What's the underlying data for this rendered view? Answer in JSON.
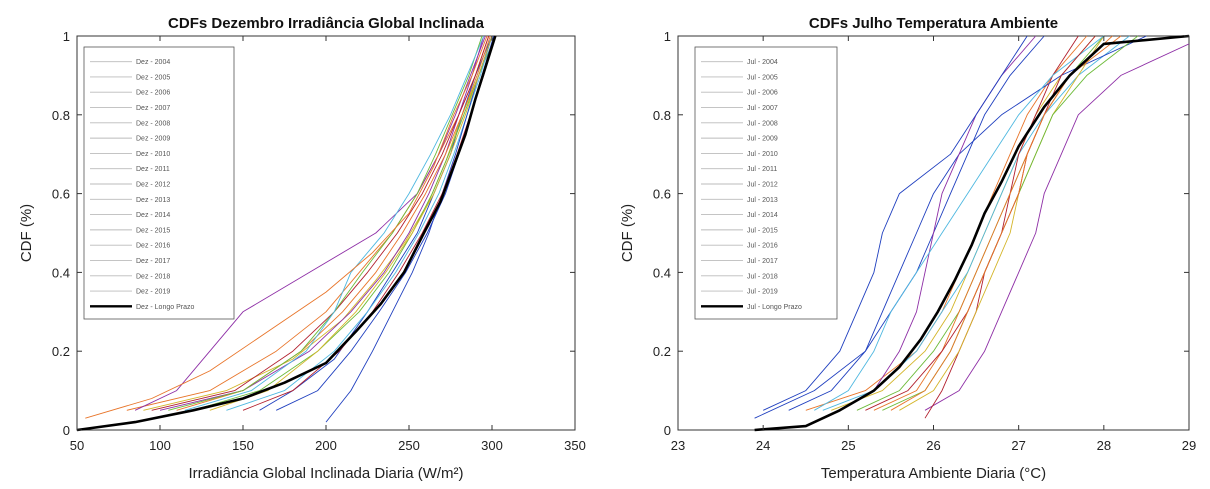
{
  "chart_data": [
    {
      "type": "line",
      "title": "CDFs Dezembro Irradiância Global Inclinada",
      "xlabel": "Irradiância Global Inclinada Diaria (W/m²)",
      "ylabel": "CDF (%)",
      "xlim": [
        50,
        350
      ],
      "ylim": [
        0,
        1
      ],
      "xticks": [
        "50",
        "100",
        "150",
        "200",
        "250",
        "300",
        "350"
      ],
      "yticks": [
        "0",
        "0.2",
        "0.4",
        "0.6",
        "0.8",
        "1"
      ],
      "grid": false,
      "legend": "top-left",
      "series": [
        {
          "name": "Dez - 2004",
          "color": "#1f3fbf",
          "x": [
            160,
            180,
            205,
            225,
            240,
            255,
            265,
            275,
            282,
            290,
            300
          ],
          "y": [
            0.05,
            0.1,
            0.18,
            0.3,
            0.4,
            0.5,
            0.6,
            0.7,
            0.8,
            0.9,
            1.0
          ]
        },
        {
          "name": "Dez - 2005",
          "color": "#e8752a",
          "x": [
            80,
            130,
            170,
            200,
            220,
            240,
            255,
            268,
            280,
            290,
            298
          ],
          "y": [
            0.05,
            0.1,
            0.2,
            0.3,
            0.4,
            0.5,
            0.6,
            0.7,
            0.8,
            0.9,
            1.0
          ]
        },
        {
          "name": "Dez - 2006",
          "color": "#d4b52a",
          "x": [
            90,
            140,
            180,
            210,
            230,
            248,
            262,
            272,
            282,
            292,
            300
          ],
          "y": [
            0.05,
            0.1,
            0.18,
            0.28,
            0.38,
            0.48,
            0.58,
            0.68,
            0.8,
            0.9,
            1.0
          ]
        },
        {
          "name": "Dez - 2007",
          "color": "#8e2fa6",
          "x": [
            100,
            150,
            190,
            215,
            235,
            250,
            262,
            272,
            280,
            288,
            295
          ],
          "y": [
            0.05,
            0.1,
            0.2,
            0.3,
            0.4,
            0.5,
            0.6,
            0.7,
            0.8,
            0.9,
            1.0
          ]
        },
        {
          "name": "Dez - 2008",
          "color": "#6dbb3a",
          "x": [
            120,
            160,
            195,
            220,
            238,
            252,
            264,
            274,
            283,
            292,
            302
          ],
          "y": [
            0.05,
            0.1,
            0.2,
            0.3,
            0.4,
            0.5,
            0.6,
            0.7,
            0.8,
            0.9,
            1.0
          ]
        },
        {
          "name": "Dez - 2009",
          "color": "#4fb8e0",
          "x": [
            140,
            175,
            205,
            225,
            242,
            256,
            268,
            277,
            285,
            293,
            300
          ],
          "y": [
            0.05,
            0.1,
            0.2,
            0.3,
            0.4,
            0.5,
            0.6,
            0.7,
            0.8,
            0.9,
            1.0
          ]
        },
        {
          "name": "Dez - 2010",
          "color": "#b21f2d",
          "x": [
            95,
            145,
            180,
            205,
            225,
            243,
            258,
            270,
            280,
            290,
            298
          ],
          "y": [
            0.05,
            0.1,
            0.2,
            0.3,
            0.4,
            0.5,
            0.6,
            0.7,
            0.8,
            0.9,
            1.0
          ]
        },
        {
          "name": "Dez - 2011",
          "color": "#1f3fbf",
          "x": [
            200,
            215,
            228,
            240,
            252,
            262,
            270,
            278,
            285,
            292,
            300
          ],
          "y": [
            0.02,
            0.1,
            0.2,
            0.3,
            0.4,
            0.5,
            0.6,
            0.7,
            0.8,
            0.9,
            1.0
          ]
        },
        {
          "name": "Dez - 2012",
          "color": "#e8752a",
          "x": [
            110,
            150,
            185,
            210,
            230,
            246,
            260,
            272,
            282,
            291,
            299
          ],
          "y": [
            0.05,
            0.1,
            0.2,
            0.3,
            0.4,
            0.5,
            0.6,
            0.7,
            0.8,
            0.9,
            1.0
          ]
        },
        {
          "name": "Dez - 2013",
          "color": "#d4b52a",
          "x": [
            130,
            165,
            195,
            218,
            236,
            252,
            265,
            275,
            284,
            292,
            300
          ],
          "y": [
            0.05,
            0.1,
            0.2,
            0.3,
            0.4,
            0.5,
            0.6,
            0.7,
            0.8,
            0.9,
            1.0
          ]
        },
        {
          "name": "Dez - 2014",
          "color": "#8e2fa6",
          "x": [
            85,
            110,
            130,
            150,
            190,
            230,
            255,
            268,
            278,
            287,
            296
          ],
          "y": [
            0.05,
            0.1,
            0.2,
            0.3,
            0.4,
            0.5,
            0.6,
            0.7,
            0.8,
            0.9,
            1.0
          ]
        },
        {
          "name": "Dez - 2015",
          "color": "#6dbb3a",
          "x": [
            105,
            150,
            185,
            205,
            222,
            240,
            255,
            266,
            276,
            286,
            294
          ],
          "y": [
            0.05,
            0.1,
            0.2,
            0.3,
            0.4,
            0.5,
            0.6,
            0.7,
            0.8,
            0.9,
            1.0
          ]
        },
        {
          "name": "Dez - 2016",
          "color": "#4fb8e0",
          "x": [
            115,
            155,
            188,
            205,
            215,
            235,
            250,
            263,
            275,
            285,
            295
          ],
          "y": [
            0.05,
            0.1,
            0.2,
            0.3,
            0.4,
            0.5,
            0.6,
            0.7,
            0.8,
            0.9,
            1.0
          ]
        },
        {
          "name": "Dez - 2017",
          "color": "#b21f2d",
          "x": [
            150,
            180,
            208,
            228,
            244,
            258,
            270,
            279,
            287,
            295,
            302
          ],
          "y": [
            0.05,
            0.1,
            0.2,
            0.3,
            0.4,
            0.5,
            0.6,
            0.7,
            0.8,
            0.9,
            1.0
          ]
        },
        {
          "name": "Dez - 2018",
          "color": "#1f3fbf",
          "x": [
            170,
            195,
            215,
            232,
            248,
            261,
            272,
            280,
            287,
            294,
            301
          ],
          "y": [
            0.05,
            0.1,
            0.2,
            0.3,
            0.4,
            0.5,
            0.6,
            0.7,
            0.8,
            0.9,
            1.0
          ]
        },
        {
          "name": "Dez - 2019",
          "color": "#e8752a",
          "x": [
            55,
            95,
            130,
            165,
            200,
            228,
            250,
            265,
            277,
            288,
            297
          ],
          "y": [
            0.03,
            0.08,
            0.15,
            0.25,
            0.35,
            0.45,
            0.55,
            0.67,
            0.8,
            0.9,
            1.0
          ]
        },
        {
          "name": "Dez - Longo Prazo",
          "color": "#000000",
          "x": [
            50,
            85,
            120,
            150,
            175,
            200,
            218,
            233,
            247,
            259,
            269,
            277,
            284,
            290,
            296,
            302
          ],
          "y": [
            0.0,
            0.02,
            0.05,
            0.08,
            0.12,
            0.17,
            0.25,
            0.32,
            0.4,
            0.5,
            0.58,
            0.67,
            0.75,
            0.84,
            0.92,
            1.0
          ]
        }
      ]
    },
    {
      "type": "line",
      "title": "CDFs Julho Temperatura Ambiente",
      "xlabel": "Temperatura Ambiente Diaria (°C)",
      "ylabel": "CDF (%)",
      "xlim": [
        23,
        29
      ],
      "ylim": [
        0,
        1
      ],
      "xticks": [
        "23",
        "24",
        "25",
        "26",
        "27",
        "28",
        "29"
      ],
      "yticks": [
        "0",
        "0.2",
        "0.4",
        "0.6",
        "0.8",
        "1"
      ],
      "grid": false,
      "legend": "top-left",
      "series": [
        {
          "name": "Jul - 2004",
          "color": "#1f3fbf",
          "x": [
            23.9,
            24.6,
            25.2,
            25.5,
            25.8,
            26.0,
            26.2,
            26.4,
            26.6,
            26.9,
            27.3
          ],
          "y": [
            0.03,
            0.1,
            0.2,
            0.3,
            0.4,
            0.5,
            0.6,
            0.7,
            0.8,
            0.9,
            1.0
          ]
        },
        {
          "name": "Jul - 2005",
          "color": "#e8752a",
          "x": [
            24.5,
            25.2,
            25.8,
            26.1,
            26.3,
            26.5,
            26.7,
            26.9,
            27.1,
            27.4,
            27.8
          ],
          "y": [
            0.05,
            0.1,
            0.2,
            0.3,
            0.4,
            0.5,
            0.6,
            0.7,
            0.8,
            0.9,
            1.0
          ]
        },
        {
          "name": "Jul - 2006",
          "color": "#d4b52a",
          "x": [
            24.8,
            25.4,
            25.9,
            26.2,
            26.4,
            26.6,
            26.8,
            27.0,
            27.2,
            27.5,
            27.9
          ],
          "y": [
            0.05,
            0.1,
            0.2,
            0.3,
            0.4,
            0.5,
            0.6,
            0.7,
            0.8,
            0.9,
            1.0
          ]
        },
        {
          "name": "Jul - 2007",
          "color": "#8e2fa6",
          "x": [
            25.9,
            26.3,
            26.6,
            26.8,
            27.0,
            27.2,
            27.3,
            27.5,
            27.7,
            28.2,
            29.0
          ],
          "y": [
            0.05,
            0.1,
            0.2,
            0.3,
            0.4,
            0.5,
            0.6,
            0.7,
            0.8,
            0.9,
            0.98
          ]
        },
        {
          "name": "Jul - 2008",
          "color": "#6dbb3a",
          "x": [
            25.1,
            25.6,
            26.0,
            26.3,
            26.5,
            26.7,
            26.9,
            27.1,
            27.3,
            27.6,
            28.0
          ],
          "y": [
            0.05,
            0.1,
            0.2,
            0.3,
            0.4,
            0.5,
            0.6,
            0.7,
            0.8,
            0.9,
            1.0
          ]
        },
        {
          "name": "Jul - 2009",
          "color": "#4fb8e0",
          "x": [
            24.7,
            25.3,
            25.8,
            26.1,
            26.4,
            26.6,
            26.8,
            27.0,
            27.3,
            27.7,
            28.3
          ],
          "y": [
            0.05,
            0.1,
            0.2,
            0.3,
            0.4,
            0.5,
            0.6,
            0.7,
            0.8,
            0.9,
            1.0
          ]
        },
        {
          "name": "Jul - 2010",
          "color": "#b21f2d",
          "x": [
            25.9,
            26.1,
            26.3,
            26.5,
            26.6,
            26.8,
            26.9,
            27.0,
            27.2,
            27.4,
            27.7
          ],
          "y": [
            0.03,
            0.1,
            0.2,
            0.3,
            0.4,
            0.5,
            0.6,
            0.7,
            0.8,
            0.9,
            1.0
          ]
        },
        {
          "name": "Jul - 2011",
          "color": "#1f3fbf",
          "x": [
            24.3,
            24.8,
            25.2,
            25.4,
            25.6,
            25.8,
            26.0,
            26.3,
            26.8,
            27.5,
            28.5
          ],
          "y": [
            0.05,
            0.1,
            0.2,
            0.3,
            0.4,
            0.5,
            0.6,
            0.7,
            0.8,
            0.9,
            1.0
          ]
        },
        {
          "name": "Jul - 2012",
          "color": "#e8752a",
          "x": [
            25.3,
            25.8,
            26.1,
            26.3,
            26.5,
            26.7,
            26.9,
            27.1,
            27.3,
            27.6,
            28.1
          ],
          "y": [
            0.05,
            0.1,
            0.2,
            0.3,
            0.4,
            0.5,
            0.6,
            0.7,
            0.8,
            0.9,
            1.0
          ]
        },
        {
          "name": "Jul - 2013",
          "color": "#d4b52a",
          "x": [
            25.6,
            26.0,
            26.3,
            26.5,
            26.7,
            26.9,
            27.0,
            27.2,
            27.4,
            27.7,
            28.0
          ],
          "y": [
            0.05,
            0.1,
            0.2,
            0.3,
            0.4,
            0.5,
            0.6,
            0.7,
            0.8,
            0.9,
            1.0
          ]
        },
        {
          "name": "Jul - 2014",
          "color": "#8e2fa6",
          "x": [
            24.9,
            25.3,
            25.6,
            25.8,
            25.9,
            26.0,
            26.1,
            26.3,
            26.5,
            26.8,
            27.2
          ],
          "y": [
            0.05,
            0.1,
            0.2,
            0.3,
            0.4,
            0.5,
            0.6,
            0.7,
            0.8,
            0.9,
            1.0
          ]
        },
        {
          "name": "Jul - 2015",
          "color": "#6dbb3a",
          "x": [
            25.4,
            25.9,
            26.2,
            26.4,
            26.6,
            26.8,
            27.0,
            27.2,
            27.4,
            27.8,
            28.4
          ],
          "y": [
            0.05,
            0.1,
            0.2,
            0.3,
            0.4,
            0.5,
            0.6,
            0.7,
            0.8,
            0.9,
            1.0
          ]
        },
        {
          "name": "Jul - 2016",
          "color": "#4fb8e0",
          "x": [
            24.6,
            25.0,
            25.3,
            25.5,
            25.8,
            26.1,
            26.4,
            26.7,
            27.0,
            27.4,
            28.0
          ],
          "y": [
            0.05,
            0.1,
            0.2,
            0.3,
            0.4,
            0.5,
            0.6,
            0.7,
            0.8,
            0.9,
            1.0
          ]
        },
        {
          "name": "Jul - 2017",
          "color": "#b21f2d",
          "x": [
            25.2,
            25.7,
            26.1,
            26.4,
            26.6,
            26.8,
            27.0,
            27.1,
            27.3,
            27.5,
            27.9
          ],
          "y": [
            0.05,
            0.1,
            0.2,
            0.3,
            0.4,
            0.5,
            0.6,
            0.7,
            0.8,
            0.9,
            1.0
          ]
        },
        {
          "name": "Jul - 2018",
          "color": "#1f3fbf",
          "x": [
            24.0,
            24.5,
            24.9,
            25.1,
            25.3,
            25.4,
            25.6,
            26.2,
            26.5,
            26.8,
            27.1
          ],
          "y": [
            0.05,
            0.1,
            0.2,
            0.3,
            0.4,
            0.5,
            0.6,
            0.7,
            0.8,
            0.9,
            1.0
          ]
        },
        {
          "name": "Jul - 2019",
          "color": "#e8752a",
          "x": [
            25.5,
            25.9,
            26.2,
            26.4,
            26.6,
            26.8,
            27.0,
            27.1,
            27.3,
            27.6,
            28.2
          ],
          "y": [
            0.05,
            0.1,
            0.2,
            0.3,
            0.4,
            0.5,
            0.6,
            0.7,
            0.8,
            0.9,
            1.0
          ]
        },
        {
          "name": "Jul - Longo Prazo",
          "color": "#000000",
          "x": [
            23.9,
            24.5,
            24.9,
            25.3,
            25.6,
            25.85,
            26.05,
            26.25,
            26.45,
            26.6,
            26.8,
            27.0,
            27.3,
            27.6,
            28.0,
            29.0
          ],
          "y": [
            0.0,
            0.01,
            0.05,
            0.1,
            0.16,
            0.23,
            0.3,
            0.38,
            0.47,
            0.55,
            0.63,
            0.72,
            0.82,
            0.9,
            0.98,
            1.0
          ]
        }
      ]
    }
  ]
}
